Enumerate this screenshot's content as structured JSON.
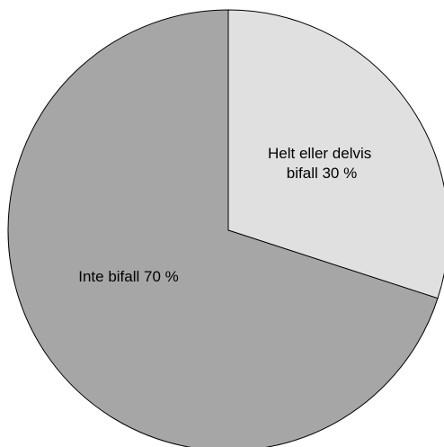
{
  "chart_data": {
    "type": "pie",
    "slices": [
      {
        "label_lines": [
          "Helt eller delvis",
          "bifall 30 %"
        ],
        "value": 30,
        "color": "#e0e0e0"
      },
      {
        "label_lines": [
          "Inte bifall 70 %"
        ],
        "value": 70,
        "color": "#a6a6a6"
      }
    ],
    "start_angle_deg": 0,
    "direction": "clockwise",
    "outline_color": "#000000",
    "legend": "none"
  }
}
